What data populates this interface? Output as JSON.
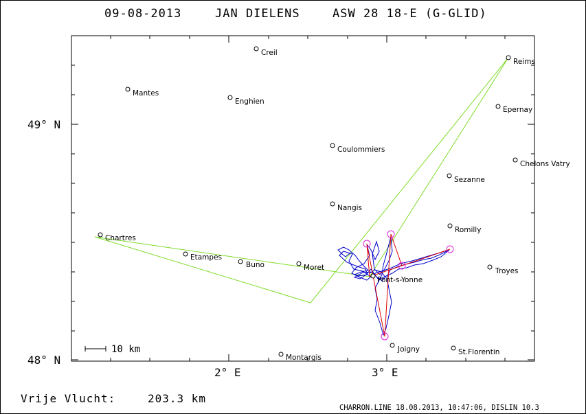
{
  "header": {
    "date": "09-08-2013",
    "pilot": "JAN DIELENS",
    "glider": "ASW 28 18-E (G-GLID)"
  },
  "axes": {
    "lat_labels": [
      "49° N",
      "48° N"
    ],
    "lon_labels": [
      "2° E",
      "3° E"
    ]
  },
  "scale_bar": {
    "label": "10 km"
  },
  "footer": {
    "distance_label": "Vrije Vlucht:",
    "distance_value": "203.3 km",
    "credit": "CHARRON.LINE 18.08.2013, 10:47:06, DISLIN 10.3"
  },
  "colors": {
    "task": "#7fdc2a",
    "track": "#0000cc",
    "optimized": "#dd0000",
    "turnpoint": "#dd22dd"
  },
  "cities": [
    {
      "name": "Creil"
    },
    {
      "name": "Mantes"
    },
    {
      "name": "Enghien"
    },
    {
      "name": "Reims"
    },
    {
      "name": "Epernay"
    },
    {
      "name": "Coulommiers"
    },
    {
      "name": "Chelons Vatry"
    },
    {
      "name": "Sezanne"
    },
    {
      "name": "Nangis"
    },
    {
      "name": "Romilly"
    },
    {
      "name": "Chartres"
    },
    {
      "name": "Etampes"
    },
    {
      "name": "Buno"
    },
    {
      "name": "Moret"
    },
    {
      "name": "Troyes"
    },
    {
      "name": "Pont-s-Yonne"
    },
    {
      "name": "Joigny"
    },
    {
      "name": "St.Florentin"
    },
    {
      "name": "Montargis"
    }
  ]
}
